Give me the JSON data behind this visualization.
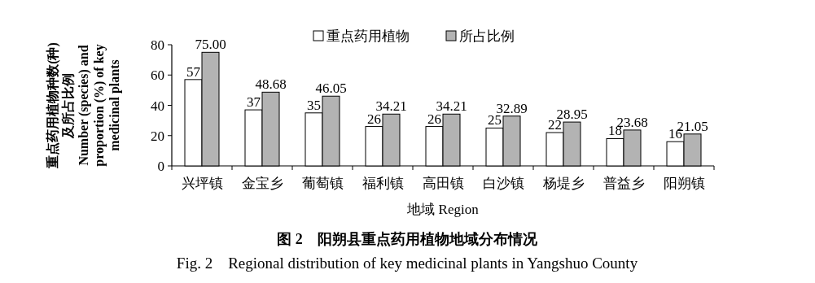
{
  "chart_data": {
    "type": "bar",
    "title": "图 2　阳朔县重点药用植物地域分布情况",
    "subtitle": "Fig. 2　Regional distribution of key medicinal plants in Yangshuo County",
    "xlabel": "地域 Region",
    "ylabel": "重点药用植物种数(种)\n及所占比例\nNumber (species) and\nproportion (%) of key\nmedicinal plants",
    "categories": [
      "兴坪镇",
      "金宝乡",
      "葡萄镇",
      "福利镇",
      "高田镇",
      "白沙镇",
      "杨堤乡",
      "普益乡",
      "阳朔镇"
    ],
    "series": [
      {
        "name": "重点药用植物",
        "color": "#ffffff",
        "values": [
          57,
          37,
          35,
          26,
          26,
          25,
          22,
          18,
          16
        ],
        "value_labels": [
          "57",
          "37",
          "35",
          "26",
          "26",
          "25",
          "22",
          "18",
          "16"
        ]
      },
      {
        "name": "所占比例",
        "color": "#b3b3b3",
        "values": [
          75.0,
          48.68,
          46.05,
          34.21,
          34.21,
          32.89,
          28.95,
          23.68,
          21.05
        ],
        "value_labels": [
          "75.00",
          "48.68",
          "46.05",
          "34.21",
          "34.21",
          "32.89",
          "28.95",
          "23.68",
          "21.05"
        ]
      }
    ],
    "ylim": [
      0,
      80
    ],
    "yticks": [
      0,
      20,
      40,
      60,
      80
    ],
    "legend": "top",
    "grid": false
  }
}
